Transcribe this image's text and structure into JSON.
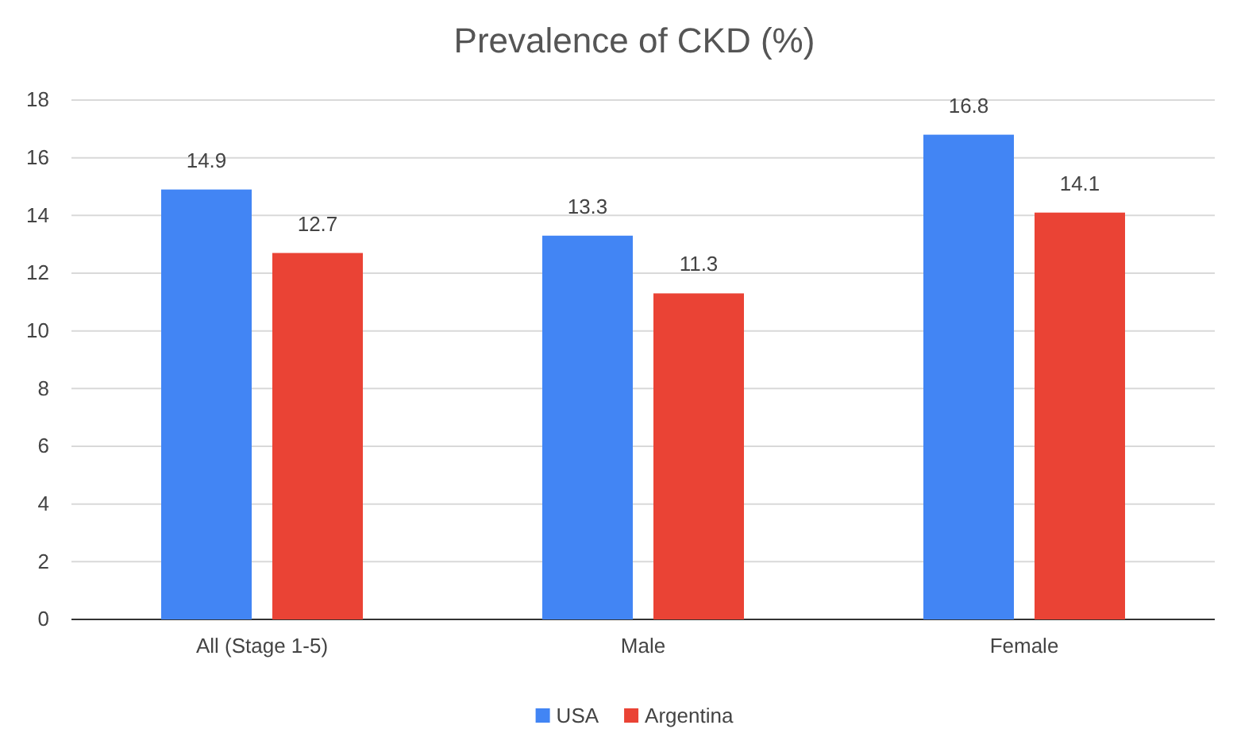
{
  "chart_data": {
    "type": "bar",
    "title": "Prevalence of CKD (%)",
    "categories": [
      "All  (Stage 1-5)",
      "Male",
      "Female"
    ],
    "series": [
      {
        "name": "USA",
        "color": "#4285f4",
        "values": [
          14.9,
          13.3,
          16.8
        ]
      },
      {
        "name": "Argentina",
        "color": "#ea4335",
        "values": [
          12.7,
          11.3,
          14.1
        ]
      }
    ],
    "ylim": [
      0,
      18
    ],
    "yticks": [
      0,
      2,
      4,
      6,
      8,
      10,
      12,
      14,
      16,
      18
    ],
    "grid": "y",
    "legend": "bottom",
    "data_labels": true
  }
}
